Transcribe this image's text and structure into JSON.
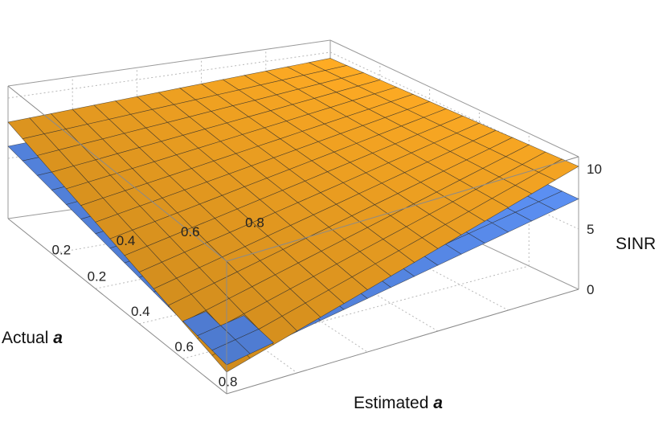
{
  "chart_data": {
    "type": "surface3d",
    "title": "",
    "xlabel": "Estimated a",
    "xlabel_text": "Estimated",
    "xlabel_symbol": "a",
    "ylabel": "Actual a",
    "ylabel_text": "Actual",
    "ylabel_symbol": "a",
    "zlabel": "SINR",
    "x_ticks": [
      0.2,
      0.4,
      0.6,
      0.8
    ],
    "y_ticks": [
      0.2,
      0.4,
      0.6,
      0.8
    ],
    "z_ticks": [
      0,
      5,
      10
    ],
    "xlim": [
      0,
      1
    ],
    "ylim": [
      0,
      1
    ],
    "zlim": [
      0,
      11
    ],
    "grid": true,
    "mesh_divisions": 15,
    "series": [
      {
        "color": "#F4A422",
        "corner_values": {
          "x0_y0": 8.0,
          "x1_y0": 1.8,
          "x0_y1": 9.5,
          "x1_y1": 10.2
        }
      },
      {
        "color": "#5B8FF2",
        "corner_values": {
          "x0_y0": 6.0,
          "x1_y0": 2.4,
          "x0_y1": 7.5,
          "x1_y1": 7.5
        }
      }
    ]
  }
}
